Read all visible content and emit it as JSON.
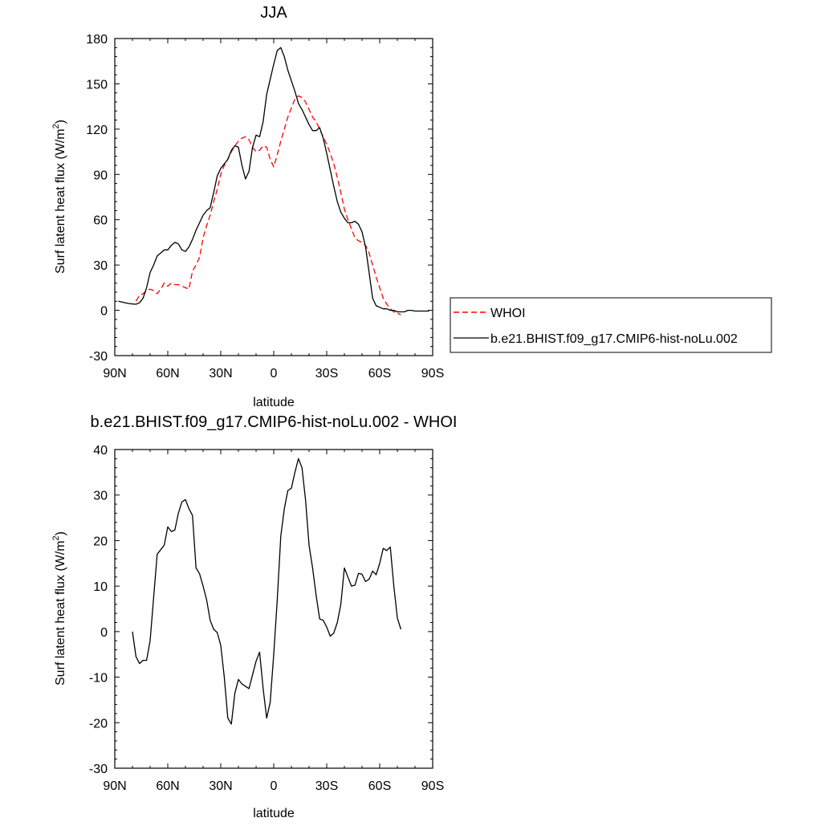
{
  "chart_data": [
    {
      "type": "line",
      "title": "JJA",
      "xlabel": "latitude",
      "ylabel": "Surf latent heat flux (W/m",
      "ylabel_sup": "2",
      "ylabel_close": ")",
      "xlim": [
        90,
        -90
      ],
      "ylim": [
        -30,
        180
      ],
      "x_ticks": [
        90,
        60,
        30,
        0,
        -30,
        -60,
        -90
      ],
      "x_tick_labels": [
        "90N",
        "60N",
        "30N",
        "0",
        "30S",
        "60S",
        "90S"
      ],
      "y_ticks": [
        -30,
        0,
        30,
        60,
        90,
        120,
        150,
        180
      ],
      "y_tick_labels": [
        "-30",
        "0",
        "30",
        "60",
        "90",
        "120",
        "150",
        "180"
      ],
      "legend": "outside-right",
      "series": [
        {
          "name": "WHOI",
          "color": "#ff0000",
          "dash": "dashed",
          "x": [
            78,
            76,
            74,
            72,
            70,
            68,
            66,
            64,
            62,
            60,
            58,
            56,
            54,
            52,
            50,
            48,
            46,
            44,
            42,
            40,
            38,
            36,
            34,
            32,
            30,
            28,
            26,
            24,
            22,
            20,
            18,
            16,
            14,
            12,
            10,
            8,
            6,
            4,
            2,
            0,
            -2,
            -4,
            -6,
            -8,
            -10,
            -12,
            -14,
            -16,
            -18,
            -20,
            -22,
            -24,
            -26,
            -28,
            -30,
            -32,
            -34,
            -36,
            -38,
            -40,
            -42,
            -44,
            -46,
            -48,
            -50,
            -52,
            -54,
            -56,
            -58,
            -60,
            -62,
            -64,
            -66,
            -68,
            -70,
            -72
          ],
          "y": [
            6,
            10,
            11,
            13,
            14,
            13,
            11,
            14,
            18,
            16,
            18,
            17,
            17,
            16,
            15,
            14,
            26,
            30,
            35,
            48,
            56,
            63,
            72,
            80,
            90,
            96,
            100,
            105,
            109,
            112,
            114,
            115,
            113,
            108,
            105,
            106,
            109,
            108,
            100,
            95,
            103,
            112,
            120,
            128,
            134,
            140,
            142,
            141,
            138,
            133,
            128,
            125,
            120,
            115,
            110,
            104,
            97,
            88,
            78,
            67,
            60,
            54,
            48,
            46,
            45,
            43,
            38,
            30,
            22,
            15,
            8,
            4,
            1,
            -1,
            -2,
            -3
          ]
        },
        {
          "name": "b.e21.BHIST.f09_g17.CMIP6-hist-noLu.002",
          "color": "#000000",
          "dash": "solid",
          "x": [
            88,
            86,
            84,
            82,
            80,
            78,
            76,
            74,
            72,
            70,
            68,
            66,
            64,
            62,
            60,
            58,
            56,
            54,
            52,
            50,
            48,
            46,
            44,
            42,
            40,
            38,
            36,
            34,
            32,
            30,
            28,
            26,
            24,
            22,
            20,
            18,
            16,
            14,
            12,
            10,
            8,
            6,
            4,
            2,
            0,
            -2,
            -4,
            -6,
            -8,
            -10,
            -12,
            -14,
            -16,
            -18,
            -20,
            -22,
            -24,
            -26,
            -28,
            -30,
            -32,
            -34,
            -36,
            -38,
            -40,
            -42,
            -44,
            -46,
            -48,
            -50,
            -52,
            -54,
            -56,
            -58,
            -60,
            -62,
            -64,
            -66,
            -68,
            -70,
            -72,
            -74,
            -76,
            -78,
            -80,
            -82,
            -84,
            -86,
            -88
          ],
          "y": [
            6,
            5.5,
            5,
            4.5,
            4.2,
            4,
            5,
            8,
            15,
            25,
            30,
            36,
            38,
            40,
            40,
            43,
            45,
            44,
            40,
            39,
            42,
            47,
            53,
            58,
            63,
            66,
            68,
            78,
            89,
            94,
            97,
            100,
            106,
            109,
            108,
            96,
            87,
            92,
            108,
            116,
            115,
            125,
            143,
            153,
            163,
            172,
            174,
            168,
            159,
            152,
            145,
            137,
            133,
            128,
            123,
            119,
            119,
            121,
            114,
            104,
            93,
            82,
            72,
            65,
            61,
            58,
            58,
            59,
            57,
            52,
            42,
            25,
            8,
            3,
            2,
            1,
            1,
            0,
            0,
            -1,
            -1,
            -1,
            0,
            0,
            -0.5,
            -0.5,
            -0.5,
            -0.5,
            -0.5
          ]
        }
      ]
    },
    {
      "type": "line",
      "title": "b.e21.BHIST.f09_g17.CMIP6-hist-noLu.002 - WHOI",
      "xlabel": "latitude",
      "ylabel": "Surf latent heat flux (W/m",
      "ylabel_sup": "2",
      "ylabel_close": ")",
      "xlim": [
        90,
        -90
      ],
      "ylim": [
        -30,
        40
      ],
      "x_ticks": [
        90,
        60,
        30,
        0,
        -30,
        -60,
        -90
      ],
      "x_tick_labels": [
        "90N",
        "60N",
        "30N",
        "0",
        "30S",
        "60S",
        "90S"
      ],
      "y_ticks": [
        -30,
        -20,
        -10,
        0,
        10,
        20,
        30,
        40
      ],
      "y_tick_labels": [
        "-30",
        "-20",
        "-10",
        "0",
        "10",
        "20",
        "30",
        "40"
      ],
      "series": [
        {
          "color": "#000000",
          "dash": "solid",
          "x": [
            80,
            78,
            76,
            74,
            72,
            70,
            68,
            66,
            64,
            62,
            60,
            58,
            56,
            54,
            52,
            50,
            48,
            46,
            44,
            42,
            40,
            38,
            36,
            34,
            32,
            30,
            28,
            26,
            24,
            22,
            20,
            18,
            16,
            14,
            12,
            10,
            8,
            6,
            4,
            2,
            0,
            -2,
            -4,
            -6,
            -8,
            -10,
            -12,
            -14,
            -16,
            -18,
            -20,
            -22,
            -24,
            -26,
            -28,
            -30,
            -32,
            -34,
            -36,
            -38,
            -40,
            -42,
            -44,
            -46,
            -48,
            -50,
            -52,
            -54,
            -56,
            -58,
            -60,
            -62,
            -64,
            -66,
            -68,
            -70,
            -72
          ],
          "y": [
            0,
            -5.5,
            -7,
            -6.3,
            -6.3,
            -2,
            7.5,
            17,
            18,
            19,
            23,
            22,
            22.3,
            26,
            28.5,
            29,
            27,
            25.5,
            14,
            12.7,
            10,
            7,
            2.5,
            0.5,
            -0.2,
            -3,
            -10,
            -19,
            -20.3,
            -13.5,
            -10.5,
            -11.5,
            -12,
            -12.5,
            -9.5,
            -6.5,
            -4.5,
            -12.5,
            -19,
            -15.5,
            -5,
            7,
            21,
            27,
            31,
            31.5,
            35,
            38,
            36,
            29,
            19,
            14,
            8,
            2.8,
            2.5,
            1,
            -1,
            -0.3,
            2,
            6,
            14,
            12,
            10,
            10.2,
            12.8,
            12.6,
            11,
            11.5,
            13.3,
            12.5,
            15,
            18.3,
            17.8,
            18.6,
            10,
            3,
            0.5
          ]
        }
      ]
    }
  ]
}
